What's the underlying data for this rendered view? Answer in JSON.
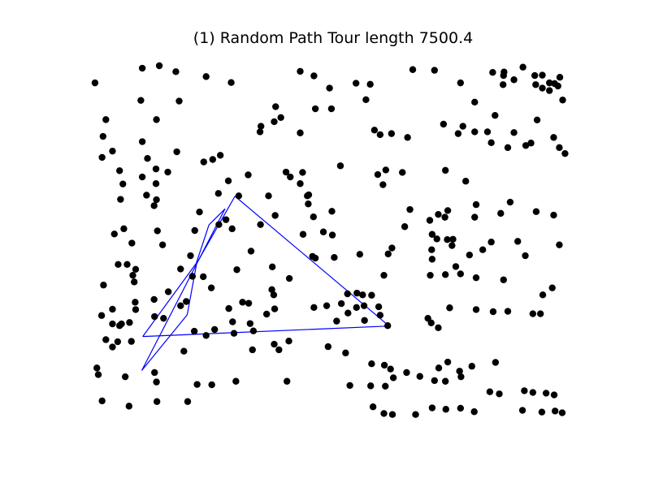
{
  "chart_data": {
    "type": "scatter",
    "title": "(1)  Random Path  Tour length 7500.4",
    "xlabel": "",
    "ylabel": "",
    "axes_visible": false,
    "xlim": [
      0,
      100
    ],
    "ylim": [
      0,
      100
    ],
    "grid": false,
    "colors": {
      "points": "#000000",
      "path": "#0000ff"
    },
    "points": [
      [
        0.5,
        95.1
      ],
      [
        10.5,
        99.3
      ],
      [
        14.1,
        100.0
      ],
      [
        17.6,
        98.3
      ],
      [
        24.0,
        96.9
      ],
      [
        29.3,
        95.2
      ],
      [
        10.2,
        90.1
      ],
      [
        18.3,
        89.9
      ],
      [
        43.9,
        98.4
      ],
      [
        46.8,
        97.1
      ],
      [
        50.1,
        93.6
      ],
      [
        55.7,
        95.0
      ],
      [
        58.7,
        94.7
      ],
      [
        57.8,
        90.3
      ],
      [
        67.7,
        98.9
      ],
      [
        72.3,
        98.7
      ],
      [
        77.8,
        95.1
      ],
      [
        80.8,
        89.6
      ],
      [
        84.6,
        98.1
      ],
      [
        87.0,
        98.2
      ],
      [
        89.1,
        96.0
      ],
      [
        86.9,
        97.2
      ],
      [
        86.8,
        94.6
      ],
      [
        91.0,
        99.6
      ],
      [
        93.5,
        97.2
      ],
      [
        95.1,
        97.3
      ],
      [
        96.6,
        95.1
      ],
      [
        98.4,
        94.2
      ],
      [
        99.4,
        90.2
      ],
      [
        93.7,
        94.6
      ],
      [
        95.1,
        93.6
      ],
      [
        97.7,
        94.9
      ],
      [
        96.6,
        92.9
      ],
      [
        98.8,
        96.7
      ],
      [
        2.8,
        84.6
      ],
      [
        13.5,
        84.6
      ],
      [
        38.7,
        88.3
      ],
      [
        39.8,
        85.2
      ],
      [
        47.1,
        87.7
      ],
      [
        50.5,
        87.7
      ],
      [
        38.4,
        84.0
      ],
      [
        60.8,
        80.3
      ],
      [
        63.2,
        80.6
      ],
      [
        66.6,
        79.5
      ],
      [
        74.2,
        83.3
      ],
      [
        78.3,
        82.7
      ],
      [
        80.8,
        81.1
      ],
      [
        83.5,
        81.1
      ],
      [
        85.1,
        85.8
      ],
      [
        89.1,
        80.9
      ],
      [
        92.7,
        77.9
      ],
      [
        2.2,
        79.8
      ],
      [
        10.5,
        78.3
      ],
      [
        35.6,
        82.7
      ],
      [
        35.4,
        81.1
      ],
      [
        43.9,
        80.8
      ],
      [
        59.6,
        81.6
      ],
      [
        77.3,
        80.6
      ],
      [
        84.3,
        78.0
      ],
      [
        87.8,
        76.6
      ],
      [
        94.0,
        84.5
      ],
      [
        97.5,
        79.5
      ],
      [
        98.7,
        76.6
      ],
      [
        99.9,
        74.9
      ],
      [
        91.6,
        77.2
      ],
      [
        4.2,
        75.6
      ],
      [
        11.6,
        73.5
      ],
      [
        17.8,
        75.4
      ],
      [
        23.5,
        72.5
      ],
      [
        25.4,
        73.2
      ],
      [
        27.0,
        74.4
      ],
      [
        13.4,
        70.5
      ],
      [
        32.9,
        68.8
      ],
      [
        44.4,
        69.5
      ],
      [
        41.8,
        68.2
      ],
      [
        52.4,
        71.4
      ],
      [
        60.3,
        68.9
      ],
      [
        62.0,
        70.2
      ],
      [
        61.4,
        66.0
      ],
      [
        65.5,
        69.5
      ],
      [
        74.6,
        70.1
      ],
      [
        78.9,
        67.0
      ],
      [
        2.0,
        73.8
      ],
      [
        5.7,
        70.0
      ],
      [
        6.4,
        66.2
      ],
      [
        10.5,
        68.2
      ],
      [
        15.9,
        69.6
      ],
      [
        13.4,
        66.3
      ],
      [
        26.6,
        63.5
      ],
      [
        28.7,
        67.1
      ],
      [
        40.9,
        69.6
      ],
      [
        43.9,
        66.3
      ],
      [
        45.7,
        63.1
      ],
      [
        45.4,
        62.8
      ],
      [
        50.6,
        58.4
      ],
      [
        67.1,
        58.9
      ],
      [
        75.1,
        58.6
      ],
      [
        81.1,
        60.3
      ],
      [
        88.3,
        61.0
      ],
      [
        5.9,
        61.8
      ],
      [
        11.4,
        63.0
      ],
      [
        13.0,
        60.0
      ],
      [
        13.5,
        61.7
      ],
      [
        22.6,
        58.2
      ],
      [
        30.9,
        62.8
      ],
      [
        37.2,
        62.8
      ],
      [
        38.6,
        57.2
      ],
      [
        45.6,
        60.5
      ],
      [
        46.7,
        56.8
      ],
      [
        66.0,
        54.0
      ],
      [
        71.3,
        55.8
      ],
      [
        73.1,
        57.5
      ],
      [
        74.5,
        56.7
      ],
      [
        80.8,
        56.7
      ],
      [
        86.3,
        57.8
      ],
      [
        93.8,
        58.3
      ],
      [
        97.5,
        57.3
      ],
      [
        6.6,
        53.4
      ],
      [
        13.7,
        52.8
      ],
      [
        21.6,
        52.9
      ],
      [
        26.7,
        54.6
      ],
      [
        28.2,
        56.0
      ],
      [
        29.5,
        53.4
      ],
      [
        35.5,
        54.6
      ],
      [
        44.5,
        51.8
      ],
      [
        48.8,
        52.5
      ],
      [
        50.7,
        51.6
      ],
      [
        71.8,
        51.8
      ],
      [
        72.8,
        50.5
      ],
      [
        75.0,
        50.3
      ],
      [
        76.2,
        50.4
      ],
      [
        84.3,
        49.6
      ],
      [
        89.9,
        49.8
      ],
      [
        4.6,
        51.9
      ],
      [
        8.3,
        49.3
      ],
      [
        20.7,
        45.7
      ],
      [
        14.8,
        48.8
      ],
      [
        33.5,
        47.0
      ],
      [
        47.1,
        45.0
      ],
      [
        46.5,
        45.5
      ],
      [
        51.1,
        45.2
      ],
      [
        56.5,
        46.1
      ],
      [
        62.5,
        46.2
      ],
      [
        63.3,
        47.9
      ],
      [
        71.8,
        44.7
      ],
      [
        71.7,
        47.4
      ],
      [
        76.0,
        48.6
      ],
      [
        79.7,
        45.9
      ],
      [
        82.5,
        47.4
      ],
      [
        91.5,
        45.7
      ],
      [
        98.7,
        48.8
      ],
      [
        5.4,
        43.2
      ],
      [
        7.3,
        43.2
      ],
      [
        9.1,
        41.8
      ],
      [
        8.5,
        40.1
      ],
      [
        18.6,
        41.9
      ],
      [
        21.1,
        39.8
      ],
      [
        23.4,
        39.7
      ],
      [
        30.5,
        41.7
      ],
      [
        38.0,
        42.5
      ],
      [
        41.6,
        39.2
      ],
      [
        61.6,
        40.1
      ],
      [
        71.4,
        40.1
      ],
      [
        74.6,
        40.3
      ],
      [
        76.8,
        42.6
      ],
      [
        77.8,
        40.5
      ],
      [
        81.1,
        39.4
      ],
      [
        2.3,
        37.3
      ],
      [
        8.8,
        38.2
      ],
      [
        16.0,
        35.4
      ],
      [
        19.8,
        32.6
      ],
      [
        25.1,
        36.5
      ],
      [
        31.7,
        32.4
      ],
      [
        33.0,
        32.1
      ],
      [
        37.9,
        36.0
      ],
      [
        38.3,
        34.5
      ],
      [
        53.9,
        34.8
      ],
      [
        55.9,
        35.0
      ],
      [
        57.1,
        34.5
      ],
      [
        59.0,
        34.4
      ],
      [
        86.9,
        38.8
      ],
      [
        95.2,
        34.5
      ],
      [
        97.2,
        36.5
      ],
      [
        4.2,
        30.4
      ],
      [
        5.7,
        25.7
      ],
      [
        7.8,
        26.6
      ],
      [
        9.0,
        32.4
      ],
      [
        9.1,
        30.3
      ],
      [
        13.0,
        33.2
      ],
      [
        18.6,
        31.4
      ],
      [
        28.8,
        30.6
      ],
      [
        36.8,
        29.0
      ],
      [
        38.5,
        30.5
      ],
      [
        51.6,
        27.0
      ],
      [
        54.0,
        29.3
      ],
      [
        57.5,
        27.2
      ],
      [
        60.8,
        28.7
      ],
      [
        70.9,
        27.8
      ],
      [
        81.1,
        30.3
      ],
      [
        84.7,
        29.7
      ],
      [
        87.8,
        29.8
      ],
      [
        93.1,
        29.1
      ],
      [
        94.7,
        29.1
      ],
      [
        1.9,
        28.6
      ],
      [
        4.2,
        26.2
      ],
      [
        6.1,
        26.2
      ],
      [
        13.1,
        28.3
      ],
      [
        15.0,
        27.8
      ],
      [
        21.5,
        24.1
      ],
      [
        24.0,
        22.9
      ],
      [
        25.8,
        24.6
      ],
      [
        29.6,
        26.8
      ],
      [
        33.3,
        26.3
      ],
      [
        34.0,
        24.2
      ],
      [
        46.8,
        30.9
      ],
      [
        49.5,
        31.4
      ],
      [
        52.6,
        32.0
      ],
      [
        55.8,
        30.9
      ],
      [
        57.4,
        31.4
      ],
      [
        60.5,
        31.1
      ],
      [
        62.4,
        25.7
      ],
      [
        71.6,
        26.5
      ],
      [
        73.1,
        25.1
      ],
      [
        75.5,
        30.8
      ],
      [
        2.8,
        21.7
      ],
      [
        4.2,
        19.6
      ],
      [
        5.3,
        21.1
      ],
      [
        8.2,
        21.2
      ],
      [
        19.3,
        18.4
      ],
      [
        29.9,
        23.5
      ],
      [
        33.8,
        18.8
      ],
      [
        38.4,
        20.4
      ],
      [
        39.4,
        18.8
      ],
      [
        41.5,
        21.3
      ],
      [
        49.8,
        19.7
      ],
      [
        53.5,
        17.9
      ],
      [
        59.0,
        14.8
      ],
      [
        61.7,
        14.4
      ],
      [
        63.0,
        13.3
      ],
      [
        66.4,
        12.3
      ],
      [
        69.2,
        11.2
      ],
      [
        73.2,
        13.6
      ],
      [
        75.1,
        15.3
      ],
      [
        77.6,
        12.7
      ],
      [
        80.2,
        14.1
      ],
      [
        85.2,
        15.2
      ],
      [
        0.9,
        13.6
      ],
      [
        1.2,
        11.7
      ],
      [
        6.9,
        11.1
      ],
      [
        13.1,
        12.3
      ],
      [
        13.5,
        9.6
      ],
      [
        22.1,
        8.9
      ],
      [
        25.2,
        8.8
      ],
      [
        30.3,
        9.8
      ],
      [
        41.1,
        9.8
      ],
      [
        54.4,
        8.6
      ],
      [
        58.8,
        8.5
      ],
      [
        61.9,
        8.4
      ],
      [
        63.6,
        10.8
      ],
      [
        72.3,
        10.0
      ],
      [
        74.6,
        9.8
      ],
      [
        77.9,
        11.1
      ],
      [
        84.0,
        6.8
      ],
      [
        86.0,
        6.2
      ],
      [
        91.3,
        7.1
      ],
      [
        93.1,
        6.6
      ],
      [
        95.9,
        6.4
      ],
      [
        97.6,
        5.9
      ],
      [
        59.3,
        2.5
      ],
      [
        61.6,
        0.6
      ],
      [
        63.4,
        0.3
      ],
      [
        68.3,
        0.3
      ],
      [
        71.8,
        2.2
      ],
      [
        74.7,
        1.8
      ],
      [
        77.8,
        2.1
      ],
      [
        80.7,
        1.1
      ],
      [
        90.9,
        1.5
      ],
      [
        95.0,
        1.0
      ],
      [
        97.8,
        1.3
      ],
      [
        99.3,
        0.8
      ],
      [
        2.0,
        4.2
      ],
      [
        7.7,
        2.7
      ],
      [
        13.6,
        4.0
      ],
      [
        20.1,
        4.0
      ]
    ],
    "path": [
      [
        28.0,
        59.1
      ],
      [
        24.6,
        54.5
      ],
      [
        21.9,
        43.5
      ],
      [
        10.6,
        22.6
      ],
      [
        62.7,
        25.6
      ],
      [
        30.1,
        62.7
      ],
      [
        22.0,
        43.5
      ],
      [
        20.0,
        28.8
      ],
      [
        10.4,
        12.9
      ],
      [
        28.0,
        59.1
      ]
    ]
  }
}
